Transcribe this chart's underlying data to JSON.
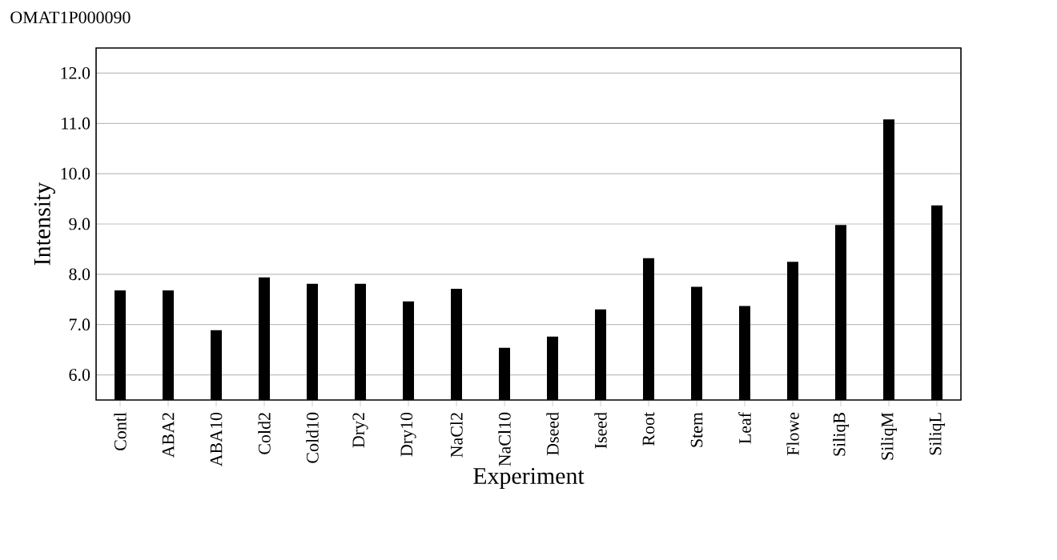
{
  "chart_data": {
    "type": "bar",
    "title": "OMAT1P000090",
    "xlabel": "Experiment",
    "ylabel": "Intensity",
    "categories": [
      "Contl",
      "ABA2",
      "ABA10",
      "Cold2",
      "Cold10",
      "Dry2",
      "Dry10",
      "NaCl2",
      "NaCl10",
      "Dseed",
      "Iseed",
      "Root",
      "Stem",
      "Leaf",
      "Flowe",
      "SiliqB",
      "SiliqM",
      "SiliqL"
    ],
    "values": [
      7.68,
      7.68,
      6.89,
      7.94,
      7.81,
      7.81,
      7.46,
      7.71,
      6.54,
      6.76,
      7.3,
      8.32,
      7.75,
      7.37,
      8.25,
      8.98,
      11.08,
      9.37
    ],
    "color": "#000000",
    "ylim": [
      5.5,
      12.5
    ],
    "yticks": [
      {
        "value": 6,
        "label": "6.0"
      },
      {
        "value": 7,
        "label": "7.0"
      },
      {
        "value": 8,
        "label": "8.0"
      },
      {
        "value": 9,
        "label": "9.0"
      },
      {
        "value": 10,
        "label": "10.0"
      },
      {
        "value": 11,
        "label": "11.0"
      },
      {
        "value": 12,
        "label": "12.0"
      }
    ],
    "grid": "y"
  }
}
